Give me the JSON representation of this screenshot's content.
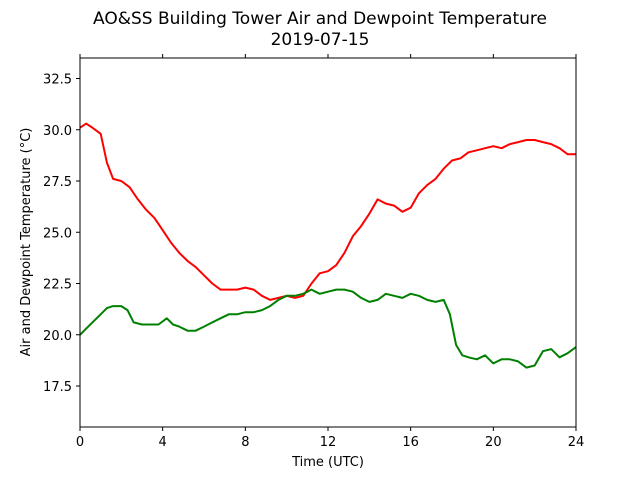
{
  "chart_data": {
    "type": "line",
    "title": "AO&SS Building Tower Air and Dewpoint Temperature",
    "subtitle": "2019-07-15",
    "xlabel": "Time (UTC)",
    "ylabel": "Air and Dewpoint Temperature (°C)",
    "xlim": [
      0,
      24
    ],
    "ylim": [
      15.5,
      33.5
    ],
    "xticks": [
      0,
      4,
      8,
      12,
      16,
      20,
      24
    ],
    "xtick_labels": [
      "0",
      "4",
      "8",
      "12",
      "16",
      "20",
      "24"
    ],
    "yticks": [
      17.5,
      20.0,
      22.5,
      25.0,
      27.5,
      30.0,
      32.5
    ],
    "ytick_labels": [
      "17.5",
      "20.0",
      "22.5",
      "25.0",
      "27.5",
      "30.0",
      "32.5"
    ],
    "grid": false,
    "legend": "none",
    "series": [
      {
        "color": "#ff0000",
        "x": [
          0,
          0.3,
          0.6,
          1.0,
          1.3,
          1.6,
          2.0,
          2.4,
          2.8,
          3.2,
          3.6,
          4.0,
          4.4,
          4.8,
          5.2,
          5.6,
          6.0,
          6.4,
          6.8,
          7.2,
          7.6,
          8.0,
          8.4,
          8.8,
          9.2,
          9.6,
          10.0,
          10.4,
          10.8,
          11.2,
          11.6,
          12.0,
          12.4,
          12.8,
          13.2,
          13.6,
          14.0,
          14.4,
          14.8,
          15.2,
          15.6,
          16.0,
          16.4,
          16.8,
          17.2,
          17.6,
          18.0,
          18.4,
          18.8,
          19.2,
          19.6,
          20.0,
          20.4,
          20.8,
          21.2,
          21.6,
          22.0,
          22.4,
          22.8,
          23.2,
          23.6,
          24.0
        ],
        "y": [
          30.1,
          30.3,
          30.1,
          29.8,
          28.4,
          27.6,
          27.5,
          27.2,
          26.6,
          26.1,
          25.7,
          25.1,
          24.5,
          24.0,
          23.6,
          23.3,
          22.9,
          22.5,
          22.2,
          22.2,
          22.2,
          22.3,
          22.2,
          21.9,
          21.7,
          21.8,
          21.9,
          21.8,
          21.9,
          22.5,
          23.0,
          23.1,
          23.4,
          24.0,
          24.8,
          25.3,
          25.9,
          26.6,
          26.4,
          26.3,
          26.0,
          26.2,
          26.9,
          27.3,
          27.6,
          28.1,
          28.5,
          28.6,
          28.9,
          29.0,
          29.1,
          29.2,
          29.1,
          29.3,
          29.4,
          29.5,
          29.5,
          29.4,
          29.3,
          29.1,
          28.8,
          28.8
        ]
      },
      {
        "color": "#008000",
        "x": [
          0,
          0.3,
          0.6,
          1.0,
          1.3,
          1.6,
          2.0,
          2.3,
          2.6,
          3.0,
          3.4,
          3.8,
          4.2,
          4.5,
          4.8,
          5.2,
          5.6,
          6.0,
          6.4,
          6.8,
          7.2,
          7.6,
          8.0,
          8.4,
          8.8,
          9.2,
          9.6,
          10.0,
          10.4,
          10.8,
          11.2,
          11.6,
          12.0,
          12.4,
          12.8,
          13.2,
          13.6,
          14.0,
          14.4,
          14.8,
          15.2,
          15.6,
          16.0,
          16.4,
          16.8,
          17.2,
          17.6,
          17.9,
          18.2,
          18.5,
          18.8,
          19.2,
          19.6,
          20.0,
          20.4,
          20.8,
          21.2,
          21.6,
          22.0,
          22.4,
          22.8,
          23.2,
          23.6,
          24.0
        ],
        "y": [
          20.0,
          20.3,
          20.6,
          21.0,
          21.3,
          21.4,
          21.4,
          21.2,
          20.6,
          20.5,
          20.5,
          20.5,
          20.8,
          20.5,
          20.4,
          20.2,
          20.2,
          20.4,
          20.6,
          20.8,
          21.0,
          21.0,
          21.1,
          21.1,
          21.2,
          21.4,
          21.7,
          21.9,
          21.9,
          22.0,
          22.2,
          22.0,
          22.1,
          22.2,
          22.2,
          22.1,
          21.8,
          21.6,
          21.7,
          22.0,
          21.9,
          21.8,
          22.0,
          21.9,
          21.7,
          21.6,
          21.7,
          21.0,
          19.5,
          19.0,
          18.9,
          18.8,
          19.0,
          18.6,
          18.8,
          18.8,
          18.7,
          18.4,
          18.5,
          19.2,
          19.3,
          18.9,
          19.1,
          19.4
        ]
      }
    ]
  }
}
